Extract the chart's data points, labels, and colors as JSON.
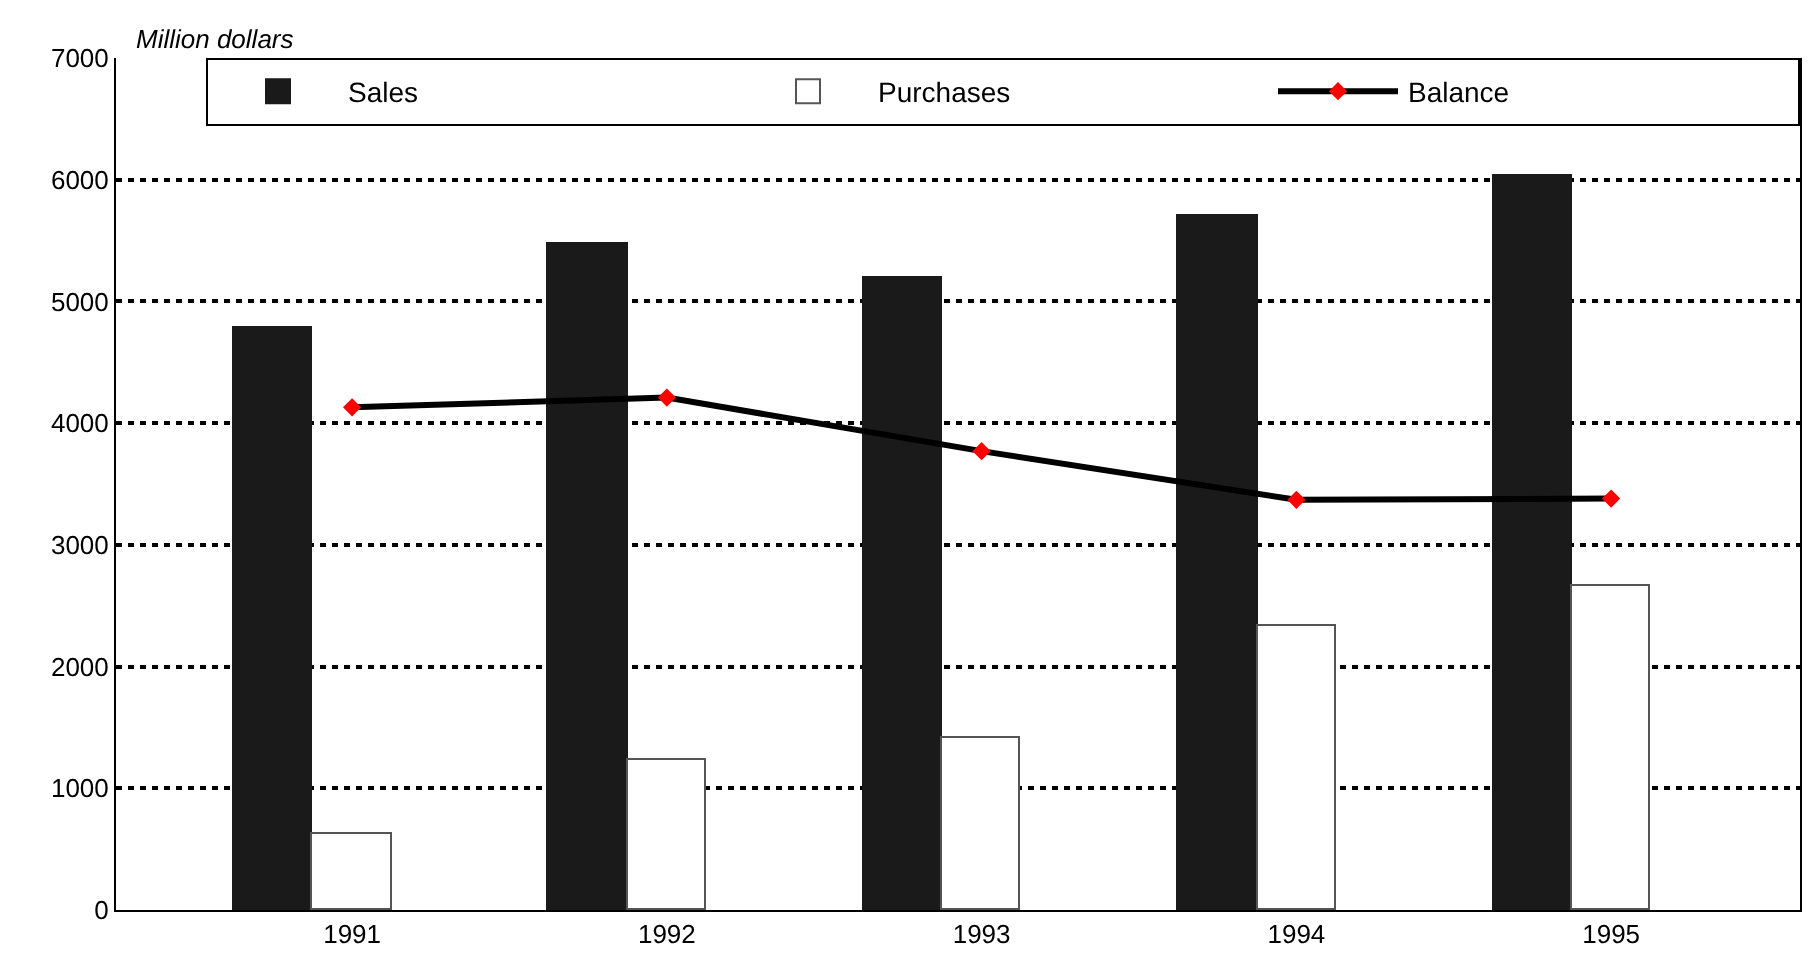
{
  "chart_data": {
    "type": "bar",
    "ylabel": "Million dollars",
    "categories": [
      "1991",
      "1992",
      "1993",
      "1994",
      "1995"
    ],
    "series": [
      {
        "name": "Sales",
        "color": "#1a1a1a",
        "values": [
          4780,
          5470,
          5190,
          5710,
          6030
        ]
      },
      {
        "name": "Purchases",
        "color": "#ffffff",
        "values": [
          630,
          1240,
          1420,
          2340,
          2660
        ]
      },
      {
        "name": "Balance",
        "type": "line",
        "color": "#000000",
        "values": [
          4130,
          4210,
          3770,
          3370,
          3380
        ]
      }
    ],
    "ylim": [
      0,
      7000
    ],
    "yticks": [
      0,
      1000,
      2000,
      3000,
      4000,
      5000,
      6000,
      7000
    ],
    "grid": "y",
    "legend": "top right",
    "marker": "diamond",
    "line_style": "solid"
  }
}
